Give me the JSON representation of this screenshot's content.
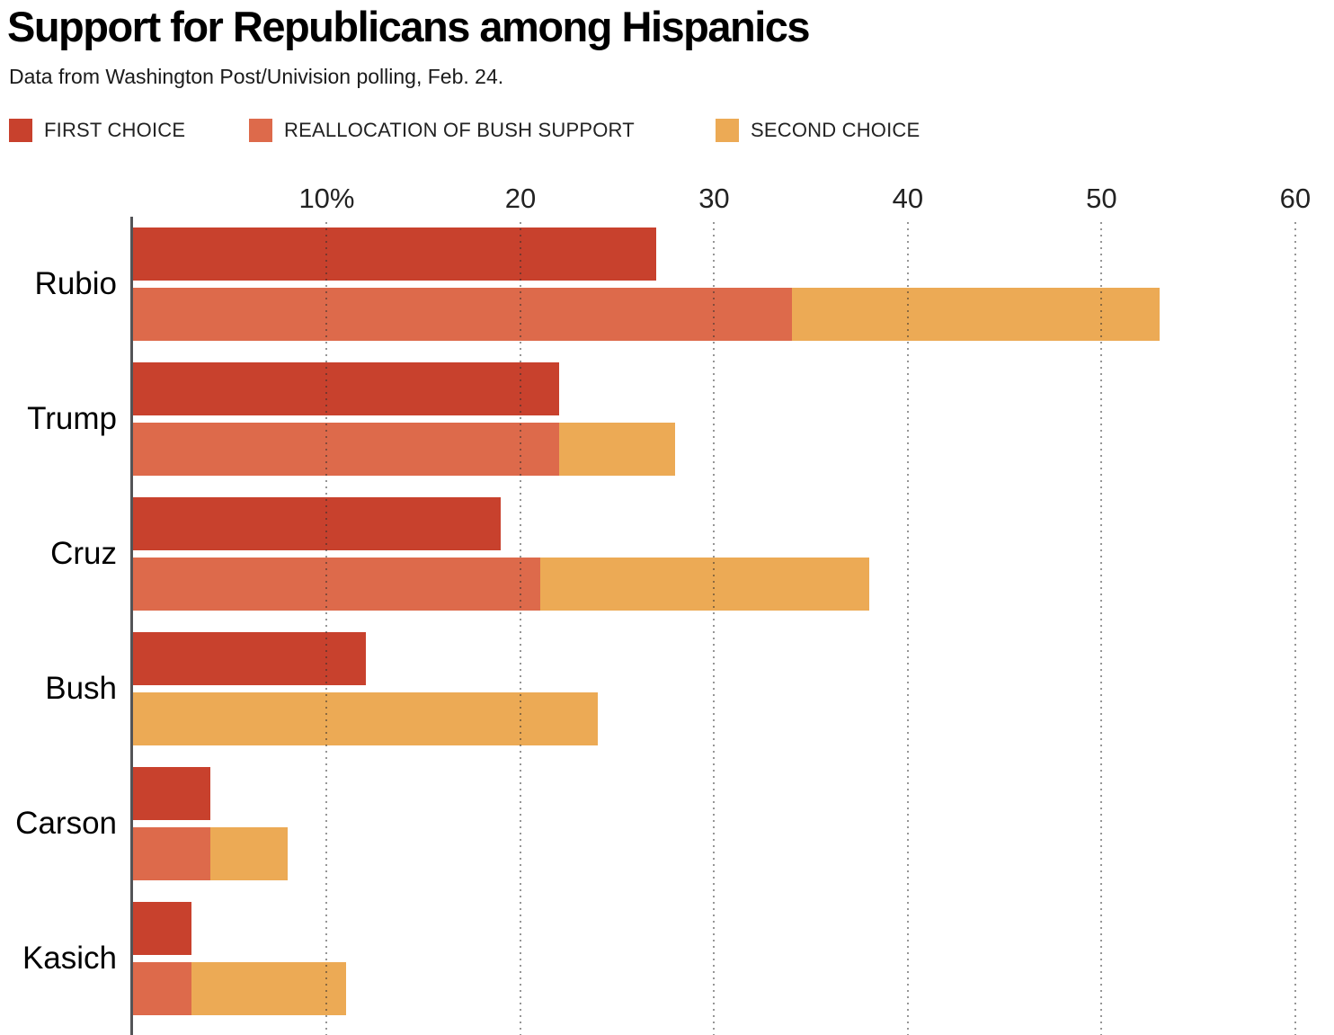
{
  "header": {
    "title": "Support for Republicans among Hispanics",
    "subtitle": "Data from Washington Post/Univision polling, Feb. 24."
  },
  "legend": [
    {
      "label": "FIRST CHOICE",
      "color": "#c8412d"
    },
    {
      "label": "REALLOCATION OF BUSH SUPPORT",
      "color": "#dd6a4b"
    },
    {
      "label": "SECOND CHOICE",
      "color": "#ecaa55"
    }
  ],
  "chart_data": {
    "type": "bar",
    "orientation": "horizontal",
    "title": "Support for Republicans among Hispanics",
    "subtitle": "Data from Washington Post/Univision polling, Feb. 24.",
    "grid": "dotted-vertical-over-bars",
    "legend_position": "top",
    "xlim": [
      0,
      62
    ],
    "x_ticks": [
      {
        "value": 10,
        "label": "10%"
      },
      {
        "value": 20,
        "label": "20"
      },
      {
        "value": 30,
        "label": "30"
      },
      {
        "value": 40,
        "label": "40"
      },
      {
        "value": 50,
        "label": "50"
      },
      {
        "value": 60,
        "label": "60"
      }
    ],
    "categories": [
      "Rubio",
      "Trump",
      "Cruz",
      "Bush",
      "Carson",
      "Kasich"
    ],
    "series_note": "Each candidate has two bars: top bar = first choice; bottom bar = support after reallocation of Bush support (salmon) stacked with second choice (amber).",
    "candidates": [
      {
        "name": "Rubio",
        "first_choice": 27,
        "with_bush_reallocation": 34,
        "with_second_choice": 53
      },
      {
        "name": "Trump",
        "first_choice": 22,
        "with_bush_reallocation": 22,
        "with_second_choice": 28
      },
      {
        "name": "Cruz",
        "first_choice": 19,
        "with_bush_reallocation": 21,
        "with_second_choice": 38
      },
      {
        "name": "Bush",
        "first_choice": 12,
        "with_bush_reallocation": 0,
        "with_second_choice": 24
      },
      {
        "name": "Carson",
        "first_choice": 4,
        "with_bush_reallocation": 4,
        "with_second_choice": 8
      },
      {
        "name": "Kasich",
        "first_choice": 3,
        "with_bush_reallocation": 3,
        "with_second_choice": 11
      }
    ],
    "colors": {
      "first_choice": "#c8412d",
      "reallocation": "#dd6a4b",
      "second_choice": "#ecaa55",
      "axis": "#535457"
    }
  }
}
